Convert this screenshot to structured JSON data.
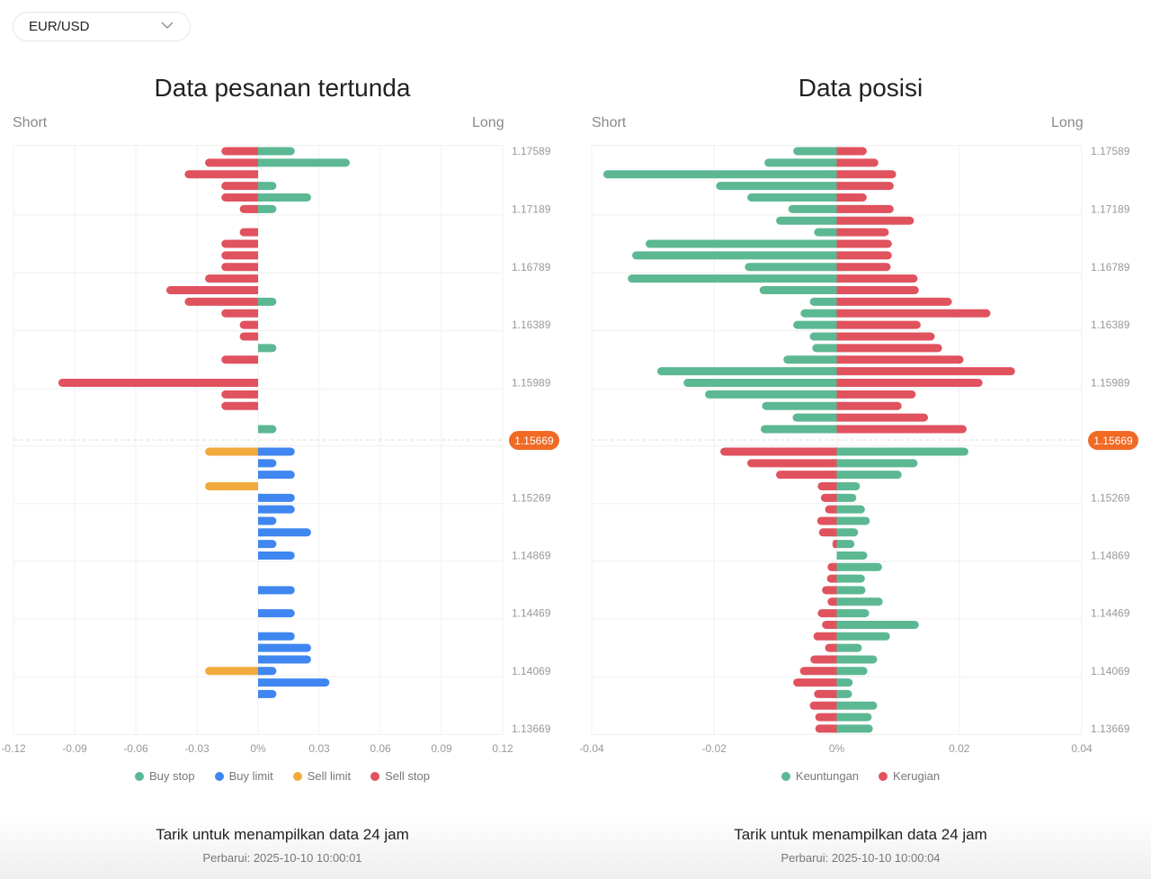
{
  "selector": {
    "value": "EUR/USD",
    "icon": "chevron-down-icon"
  },
  "colors": {
    "green": "#5cb893",
    "red": "#e0525e",
    "blue": "#3f86f0",
    "orange": "#f2aa3c",
    "badge": "#f06a24"
  },
  "chart_data": [
    {
      "type": "bar",
      "orientation": "horizontal-diverging",
      "title": "Data pesanan tertunda",
      "left_label": "Short",
      "right_label": "Long",
      "xlim": [
        -0.12,
        0.12
      ],
      "x_ticks": [
        "-0.12",
        "-0.09",
        "-0.06",
        "-0.03",
        "0%",
        "0.03",
        "0.06",
        "0.09",
        "0.12"
      ],
      "y_ticks_above": [
        {
          "label": "1.17589",
          "row": 0
        },
        {
          "label": "1.17189",
          "row": 5
        },
        {
          "label": "1.16789",
          "row": 10
        },
        {
          "label": "1.16389",
          "row": 15
        },
        {
          "label": "1.15989",
          "row": 20
        }
      ],
      "y_ticks_below": [
        {
          "label": "1.15269",
          "row": 4
        },
        {
          "label": "1.14869",
          "row": 9
        },
        {
          "label": "1.14469",
          "row": 14
        },
        {
          "label": "1.14069",
          "row": 19
        },
        {
          "label": "1.13669",
          "row": 24
        }
      ],
      "current_price": "1.15669",
      "grid": true,
      "series": [
        {
          "name": "Buy stop",
          "color": "green",
          "zone": "above",
          "side": "long",
          "values": [
            0.018,
            0.045,
            0,
            0.009,
            0.026,
            0.009,
            0,
            0,
            0,
            0,
            0,
            0,
            0,
            0.009,
            0,
            0,
            0,
            0.009,
            0,
            0,
            0,
            0,
            0,
            0,
            0.009
          ]
        },
        {
          "name": "Sell stop",
          "color": "red",
          "zone": "above",
          "side": "short",
          "values": [
            0.018,
            0.026,
            0.036,
            0.018,
            0.018,
            0.009,
            0,
            0.009,
            0.018,
            0.018,
            0.018,
            0.026,
            0.045,
            0.036,
            0.018,
            0.009,
            0.009,
            0,
            0.018,
            0,
            0.098,
            0.018,
            0.018,
            0,
            0
          ]
        },
        {
          "name": "Buy limit",
          "color": "blue",
          "zone": "below",
          "side": "long",
          "values": [
            0.018,
            0.009,
            0.018,
            0,
            0.018,
            0.018,
            0.009,
            0.026,
            0.009,
            0.018,
            0,
            0,
            0.018,
            0,
            0.018,
            0,
            0.018,
            0.026,
            0.026,
            0.009,
            0.035,
            0.009,
            0,
            0,
            0
          ]
        },
        {
          "name": "Sell limit",
          "color": "orange",
          "zone": "below",
          "side": "short",
          "values": [
            0.026,
            0,
            0,
            0.026,
            0,
            0,
            0,
            0,
            0,
            0,
            0,
            0,
            0,
            0,
            0,
            0,
            0,
            0,
            0,
            0.026,
            0,
            0,
            0,
            0,
            0
          ]
        }
      ],
      "legend": [
        {
          "label": "Buy stop",
          "color": "green"
        },
        {
          "label": "Buy limit",
          "color": "blue"
        },
        {
          "label": "Sell limit",
          "color": "orange"
        },
        {
          "label": "Sell stop",
          "color": "red"
        }
      ],
      "legend_position": "bottom"
    },
    {
      "type": "bar",
      "orientation": "horizontal-diverging",
      "title": "Data posisi",
      "left_label": "Short",
      "right_label": "Long",
      "xlim": [
        -0.04,
        0.04
      ],
      "x_ticks": [
        "-0.04",
        "-0.02",
        "0%",
        "0.02",
        "0.04"
      ],
      "y_ticks_above": [
        {
          "label": "1.17589",
          "row": 0
        },
        {
          "label": "1.17189",
          "row": 5
        },
        {
          "label": "1.16789",
          "row": 10
        },
        {
          "label": "1.16389",
          "row": 15
        },
        {
          "label": "1.15989",
          "row": 20
        }
      ],
      "y_ticks_below": [
        {
          "label": "1.15269",
          "row": 4
        },
        {
          "label": "1.14869",
          "row": 9
        },
        {
          "label": "1.14469",
          "row": 14
        },
        {
          "label": "1.14069",
          "row": 19
        },
        {
          "label": "1.13669",
          "row": 24
        }
      ],
      "current_price": "1.15669",
      "grid": true,
      "series": [
        {
          "name": "Keuntungan",
          "color": "green",
          "zone": "above",
          "side": "short",
          "values": [
            0.0071,
            0.0118,
            0.0381,
            0.0197,
            0.0146,
            0.0079,
            0.0099,
            0.0037,
            0.0312,
            0.0334,
            0.015,
            0.0341,
            0.0126,
            0.0044,
            0.0059,
            0.0071,
            0.0044,
            0.004,
            0.0087,
            0.0293,
            0.025,
            0.0215,
            0.0122,
            0.0072,
            0.0124
          ]
        },
        {
          "name": "Kerugian",
          "color": "red",
          "zone": "above",
          "side": "long",
          "values": [
            0.0049,
            0.0068,
            0.0097,
            0.0093,
            0.0049,
            0.0093,
            0.0126,
            0.0085,
            0.009,
            0.009,
            0.0088,
            0.0132,
            0.0134,
            0.0188,
            0.0251,
            0.0137,
            0.016,
            0.0172,
            0.0207,
            0.0291,
            0.0238,
            0.0129,
            0.0106,
            0.0149,
            0.0212
          ]
        },
        {
          "name": "Kerugian",
          "color": "red",
          "zone": "below",
          "side": "short",
          "values": [
            0.019,
            0.0146,
            0.0099,
            0.0031,
            0.0026,
            0.0019,
            0.0032,
            0.0029,
            0.0007,
            0,
            0.0015,
            0.0016,
            0.0024,
            0.0015,
            0.0031,
            0.0024,
            0.0038,
            0.0019,
            0.0043,
            0.006,
            0.0071,
            0.0037,
            0.0044,
            0.0035,
            0.0035
          ]
        },
        {
          "name": "Keuntungan",
          "color": "green",
          "zone": "below",
          "side": "long",
          "values": [
            0.0215,
            0.0132,
            0.0106,
            0.0038,
            0.0032,
            0.0046,
            0.0054,
            0.0035,
            0.0029,
            0.005,
            0.0074,
            0.0046,
            0.0047,
            0.0075,
            0.0053,
            0.0134,
            0.0087,
            0.0041,
            0.0066,
            0.005,
            0.0026,
            0.0025,
            0.0066,
            0.0057,
            0.0059
          ]
        }
      ],
      "legend": [
        {
          "label": "Keuntungan",
          "color": "green"
        },
        {
          "label": "Kerugian",
          "color": "red"
        }
      ],
      "legend_position": "bottom"
    }
  ],
  "footer": [
    {
      "hint": "Tarik untuk menampilkan data 24 jam",
      "updated": "Perbarui: 2025-10-10 10:00:01"
    },
    {
      "hint": "Tarik untuk menampilkan data 24 jam",
      "updated": "Perbarui: 2025-10-10 10:00:04"
    }
  ]
}
